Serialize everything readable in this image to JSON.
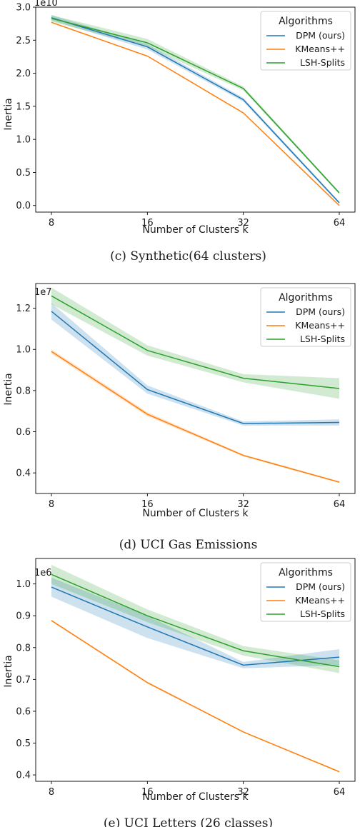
{
  "chart_data": [
    {
      "type": "line",
      "caption": "(c)  Synthetic(64 clusters)",
      "xlabel": "Number of Clusters k",
      "ylabel": "Inertia",
      "y_offset_label": "1e10",
      "y_scale": 10000000000,
      "x": [
        8,
        16,
        32,
        64
      ],
      "x_scale": "log2",
      "xticks": [
        "8",
        "16",
        "32",
        "64"
      ],
      "ylim": [
        -0.1,
        3.0
      ],
      "yticks": [
        "0.0",
        "0.5",
        "1.0",
        "1.5",
        "2.0",
        "2.5",
        "3.0"
      ],
      "legend_title": "Algorithms",
      "legend_position": "top-right",
      "series": [
        {
          "name": "DPM (ours)",
          "color": "#1f77b4",
          "values": [
            2.84,
            2.4,
            1.6,
            0.04
          ],
          "band": [
            0.04,
            0.04,
            0.03,
            0.02
          ]
        },
        {
          "name": "KMeans++",
          "color": "#ff7f0e",
          "values": [
            2.77,
            2.26,
            1.4,
            0.0
          ],
          "band": [
            0.01,
            0.01,
            0.01,
            0.01
          ]
        },
        {
          "name": "LSH-Splits",
          "color": "#2ca02c",
          "values": [
            2.83,
            2.46,
            1.77,
            0.19
          ],
          "band": [
            0.05,
            0.06,
            0.03,
            0.02
          ]
        }
      ]
    },
    {
      "type": "line",
      "caption": "(d)  UCI Gas Emissions",
      "xlabel": "Number of Clusters k",
      "ylabel": "Inertia",
      "y_offset_label": "1e7",
      "y_scale": 10000000,
      "x": [
        8,
        16,
        32,
        64
      ],
      "x_scale": "log2",
      "xticks": [
        "8",
        "16",
        "32",
        "64"
      ],
      "ylim": [
        0.3,
        1.32
      ],
      "yticks": [
        "0.4",
        "0.6",
        "0.8",
        "1.0",
        "1.2"
      ],
      "legend_title": "Algorithms",
      "legend_position": "top-right",
      "series": [
        {
          "name": "DPM (ours)",
          "color": "#1f77b4",
          "values": [
            1.185,
            0.805,
            0.64,
            0.645
          ],
          "band": [
            0.04,
            0.02,
            0.01,
            0.015
          ]
        },
        {
          "name": "KMeans++",
          "color": "#ff7f0e",
          "values": [
            0.99,
            0.685,
            0.485,
            0.355
          ],
          "band": [
            0.01,
            0.01,
            0.005,
            0.004
          ]
        },
        {
          "name": "LSH-Splits",
          "color": "#2ca02c",
          "values": [
            1.26,
            0.995,
            0.86,
            0.81
          ],
          "band": [
            0.04,
            0.025,
            0.02,
            0.05
          ]
        }
      ]
    },
    {
      "type": "line",
      "caption": "(e)  UCI Letters (26 classes)",
      "xlabel": "Number of Clusters k",
      "ylabel": "Inertia",
      "y_offset_label": "1e6",
      "y_scale": 1000000,
      "x": [
        8,
        16,
        32,
        64
      ],
      "x_scale": "log2",
      "xticks": [
        "8",
        "16",
        "32",
        "64"
      ],
      "ylim": [
        0.38,
        1.08
      ],
      "yticks": [
        "0.4",
        "0.5",
        "0.6",
        "0.7",
        "0.8",
        "0.9",
        "1.0"
      ],
      "legend_title": "Algorithms",
      "legend_position": "top-right",
      "series": [
        {
          "name": "DPM (ours)",
          "color": "#1f77b4",
          "values": [
            0.99,
            0.865,
            0.745,
            0.77
          ],
          "band": [
            0.03,
            0.035,
            0.01,
            0.025
          ]
        },
        {
          "name": "KMeans++",
          "color": "#ff7f0e",
          "values": [
            0.885,
            0.69,
            0.535,
            0.41
          ],
          "band": [
            0.003,
            0.003,
            0.002,
            0.002
          ]
        },
        {
          "name": "LSH-Splits",
          "color": "#2ca02c",
          "values": [
            1.03,
            0.9,
            0.79,
            0.74
          ],
          "band": [
            0.03,
            0.02,
            0.015,
            0.02
          ]
        }
      ]
    }
  ]
}
